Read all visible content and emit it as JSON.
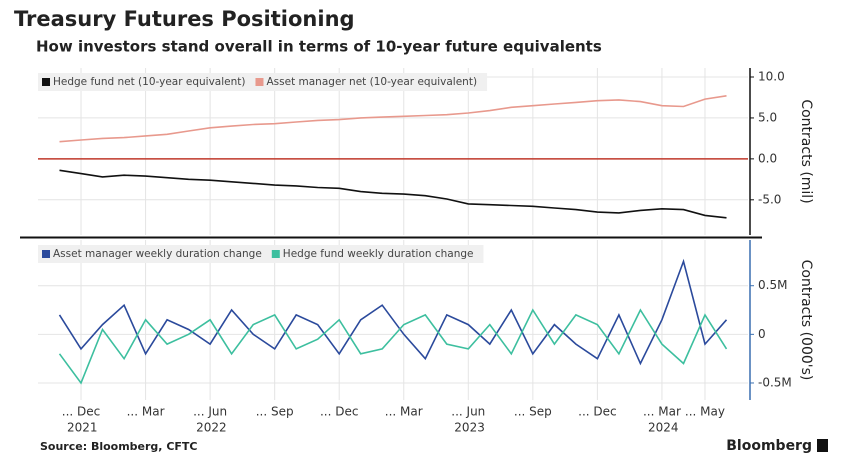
{
  "title": "Treasury Futures Positioning",
  "subtitle": "How investors stand overall in terms of 10-year future equivalents",
  "source": "Source: Bloomberg, CFTC",
  "brand": "Bloomberg",
  "chart_data": [
    {
      "type": "line",
      "y_label": "Contracts (mil)",
      "x": [
        "2021-11",
        "2021-12",
        "2022-01",
        "2022-02",
        "2022-03",
        "2022-04",
        "2022-05",
        "2022-06",
        "2022-07",
        "2022-08",
        "2022-09",
        "2022-10",
        "2022-11",
        "2022-12",
        "2023-01",
        "2023-02",
        "2023-03",
        "2023-04",
        "2023-05",
        "2023-06",
        "2023-07",
        "2023-08",
        "2023-09",
        "2023-10",
        "2023-11",
        "2023-12",
        "2024-01",
        "2024-02",
        "2024-03",
        "2024-04",
        "2024-05",
        "2024-06"
      ],
      "xlim": [
        "2021-10",
        "2024-07"
      ],
      "ylim": [
        -9.3,
        11.1
      ],
      "yticks": [
        {
          "value": 10,
          "label": "10.0"
        },
        {
          "value": 5,
          "label": "5.0"
        },
        {
          "value": 0,
          "label": "0.0"
        },
        {
          "value": -5,
          "label": "-5.0"
        }
      ],
      "zero_line_color": "#c0392b",
      "axis_color": "#111111",
      "grid": true,
      "legend": "top-left",
      "series": [
        {
          "name": "Hedge fund net (10-year equivalent)",
          "color": "#111111",
          "values": [
            -1.4,
            -1.8,
            -2.2,
            -2.0,
            -2.1,
            -2.3,
            -2.5,
            -2.6,
            -2.8,
            -3.0,
            -3.2,
            -3.3,
            -3.5,
            -3.6,
            -4.0,
            -4.2,
            -4.3,
            -4.5,
            -4.9,
            -5.5,
            -5.6,
            -5.7,
            -5.8,
            -6.0,
            -6.2,
            -6.5,
            -6.6,
            -6.3,
            -6.1,
            -6.2,
            -6.9,
            -7.2
          ]
        },
        {
          "name": "Asset manager net (10-year equivalent)",
          "color": "#e8998d",
          "values": [
            2.1,
            2.3,
            2.5,
            2.6,
            2.8,
            3.0,
            3.4,
            3.8,
            4.0,
            4.2,
            4.3,
            4.5,
            4.7,
            4.8,
            5.0,
            5.1,
            5.2,
            5.3,
            5.4,
            5.6,
            5.9,
            6.3,
            6.5,
            6.7,
            6.9,
            7.1,
            7.2,
            7.0,
            6.5,
            6.4,
            7.3,
            7.7
          ]
        }
      ]
    },
    {
      "type": "line",
      "y_label": "Contracts (000's)",
      "x": [
        "2021-11",
        "2021-12",
        "2022-01",
        "2022-02",
        "2022-03",
        "2022-04",
        "2022-05",
        "2022-06",
        "2022-07",
        "2022-08",
        "2022-09",
        "2022-10",
        "2022-11",
        "2022-12",
        "2023-01",
        "2023-02",
        "2023-03",
        "2023-04",
        "2023-05",
        "2023-06",
        "2023-07",
        "2023-08",
        "2023-09",
        "2023-10",
        "2023-11",
        "2023-12",
        "2024-01",
        "2024-02",
        "2024-03",
        "2024-04",
        "2024-05",
        "2024-06"
      ],
      "xlim": [
        "2021-10",
        "2024-07"
      ],
      "xticks": [
        {
          "value": "2021-12",
          "label": "... Dec"
        },
        {
          "value": "2022-03",
          "label": "... Mar"
        },
        {
          "value": "2022-06",
          "label": "... Jun"
        },
        {
          "value": "2022-09",
          "label": "... Sep"
        },
        {
          "value": "2022-12",
          "label": "... Dec"
        },
        {
          "value": "2023-03",
          "label": "... Mar"
        },
        {
          "value": "2023-06",
          "label": "... Jun"
        },
        {
          "value": "2023-09",
          "label": "... Sep"
        },
        {
          "value": "2023-12",
          "label": "... Dec"
        },
        {
          "value": "2024-03",
          "label": "... Mar"
        },
        {
          "value": "2024-05",
          "label": "... May"
        }
      ],
      "xyears": [
        {
          "value": "2021-12",
          "label": "2021"
        },
        {
          "value": "2022-06",
          "label": "2022"
        },
        {
          "value": "2023-06",
          "label": "2023"
        },
        {
          "value": "2024-03",
          "label": "2024"
        }
      ],
      "ylim": [
        -0.675,
        0.97
      ],
      "yticks": [
        {
          "value": 0.5,
          "label": "0.5M"
        },
        0,
        {
          "value": -0.5,
          "label": "-0.5M"
        }
      ],
      "axis_color": "#3a6fb0",
      "grid": true,
      "legend": "top-left",
      "series": [
        {
          "name": "Asset manager weekly duration change",
          "color": "#2b4a9c",
          "values": [
            0.2,
            -0.15,
            0.1,
            0.3,
            -0.2,
            0.15,
            0.05,
            -0.1,
            0.25,
            0.0,
            -0.15,
            0.2,
            0.1,
            -0.2,
            0.15,
            0.3,
            0.0,
            -0.25,
            0.2,
            0.1,
            -0.1,
            0.25,
            -0.2,
            0.1,
            -0.1,
            -0.25,
            0.2,
            -0.3,
            0.15,
            0.75,
            -0.1,
            0.15
          ]
        },
        {
          "name": "Hedge fund weekly duration change",
          "color": "#3dbf9f",
          "values": [
            -0.2,
            -0.5,
            0.05,
            -0.25,
            0.15,
            -0.1,
            0.0,
            0.15,
            -0.2,
            0.1,
            0.2,
            -0.15,
            -0.05,
            0.15,
            -0.2,
            -0.15,
            0.1,
            0.2,
            -0.1,
            -0.15,
            0.1,
            -0.2,
            0.25,
            -0.1,
            0.2,
            0.1,
            -0.2,
            0.25,
            -0.1,
            -0.3,
            0.2,
            -0.15
          ]
        }
      ]
    }
  ]
}
